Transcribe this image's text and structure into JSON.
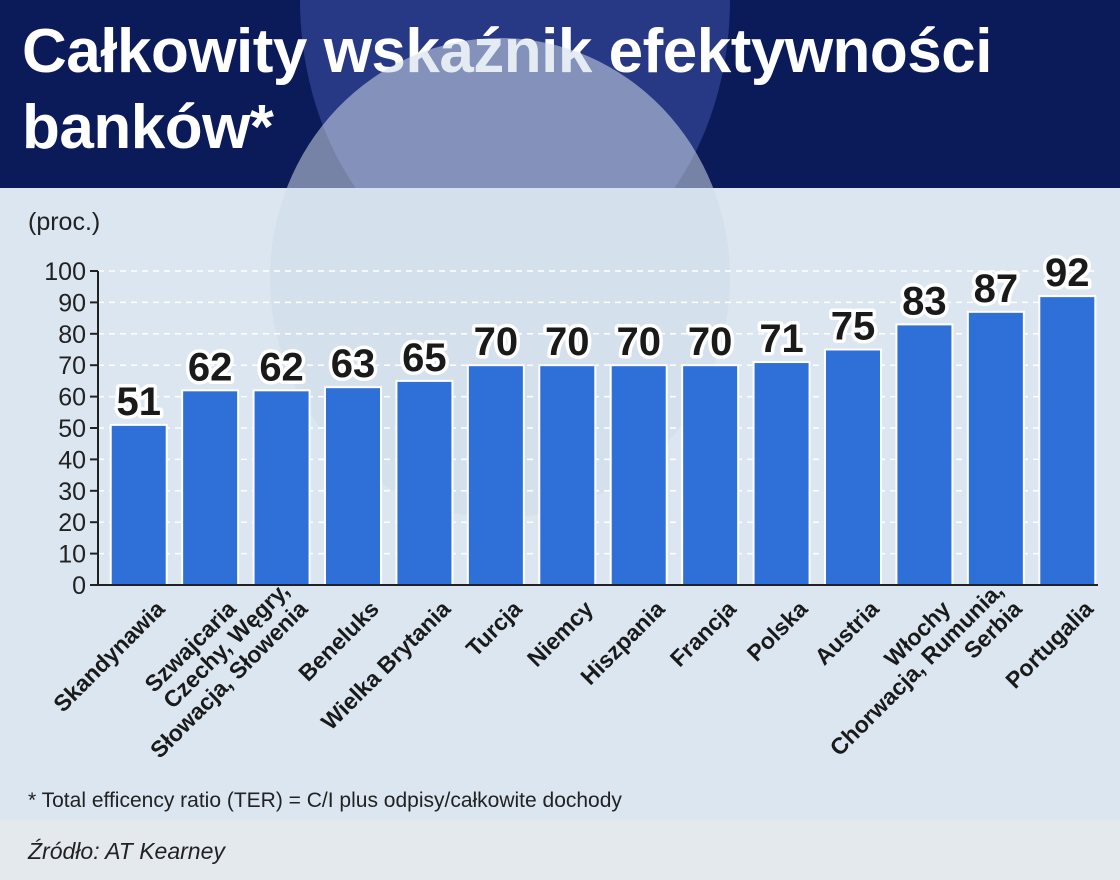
{
  "title": "Całkowity wskaźnik efektywności banków*",
  "unit_label": "(proc.)",
  "footnote": "* Total efficency ratio (TER) = C/I plus odpisy/całkowite dochody",
  "source": "Źródło: AT Kearney",
  "colors": {
    "header_bg": "#0b1a58",
    "bar": "#2f6fd8",
    "background": "#dbe6f1"
  },
  "chart_data": {
    "type": "bar",
    "title": "Całkowity wskaźnik efektywności banków*",
    "ylabel": "(proc.)",
    "ylim": [
      0,
      100
    ],
    "yticks": [
      0,
      10,
      20,
      30,
      40,
      50,
      60,
      70,
      80,
      90,
      100
    ],
    "grid": true,
    "categories": [
      [
        "Skandynawia"
      ],
      [
        "Szwajcaria"
      ],
      [
        "Czechy, Węgry,",
        "Słowacja, Słowenia"
      ],
      [
        "Beneluks"
      ],
      [
        "Wielka Brytania"
      ],
      [
        "Turcja"
      ],
      [
        "Niemcy"
      ],
      [
        "Hiszpania"
      ],
      [
        "Francja"
      ],
      [
        "Polska"
      ],
      [
        "Austria"
      ],
      [
        "Włochy"
      ],
      [
        "Chorwacja, Rumunia,",
        "Serbia"
      ],
      [
        "Portugalia"
      ]
    ],
    "values": [
      51,
      62,
      62,
      63,
      65,
      70,
      70,
      70,
      70,
      71,
      75,
      83,
      87,
      92
    ]
  }
}
